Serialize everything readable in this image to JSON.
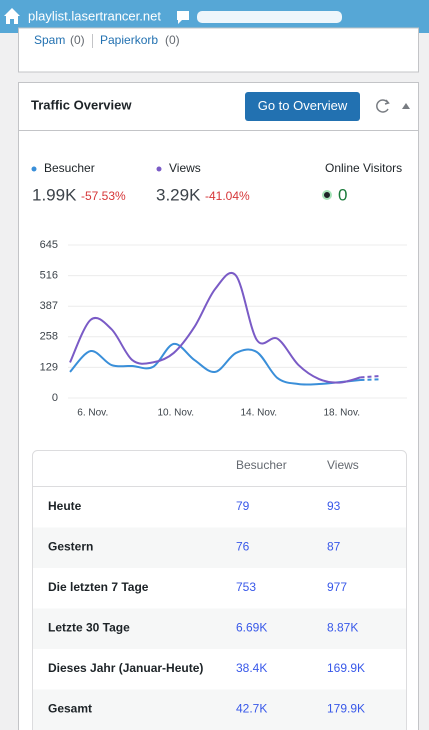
{
  "browser_bar": {
    "site": "playlist.lasertrancer.net"
  },
  "links": [
    {
      "label": "Spam",
      "count": "(0)"
    },
    {
      "label": "Papierkorb",
      "count": "(0)"
    }
  ],
  "widget": {
    "title": "Traffic Overview",
    "button": "Go to Overview"
  },
  "stats": {
    "totals": [
      {
        "value": "1.99K",
        "change": "-57.53%"
      },
      {
        "value": "3.29K",
        "change": "-41.04%"
      }
    ],
    "online": {
      "label": "Online Visitors",
      "value": "0"
    }
  },
  "chart_data": {
    "type": "line",
    "categories": [
      null,
      "6. Nov.",
      null,
      null,
      null,
      "10. Nov.",
      null,
      null,
      null,
      "14. Nov.",
      null,
      null,
      null,
      "18. Nov.",
      null,
      null
    ],
    "series": [
      {
        "name": "Besucher",
        "color": "#3a8fd9",
        "values": [
          110,
          198,
          139,
          135,
          131,
          228,
          160,
          110,
          190,
          194,
          84,
          59,
          59,
          67,
          76,
          79
        ]
      },
      {
        "name": "Views",
        "color": "#7a5bc6",
        "values": [
          150,
          330,
          290,
          160,
          150,
          190,
          300,
          460,
          516,
          245,
          250,
          140,
          80,
          65,
          87,
          93
        ]
      }
    ],
    "ylim": [
      0,
      645
    ],
    "yticks": [
      0,
      129,
      258,
      387,
      516,
      645
    ],
    "grid": true,
    "last_segment_dashed": true
  },
  "table": {
    "header": [
      "Besucher",
      "Views"
    ],
    "rows": [
      [
        "Heute",
        "79",
        "93"
      ],
      [
        "Gestern",
        "76",
        "87"
      ],
      [
        "Die letzten 7 Tage",
        "753",
        "977"
      ],
      [
        "Letzte 30 Tage",
        "6.69K",
        "8.87K"
      ],
      [
        "Dieses Jahr (Januar-Heute)",
        "38.4K",
        "169.9K"
      ],
      [
        "Gesamt",
        "42.7K",
        "179.9K"
      ]
    ]
  }
}
